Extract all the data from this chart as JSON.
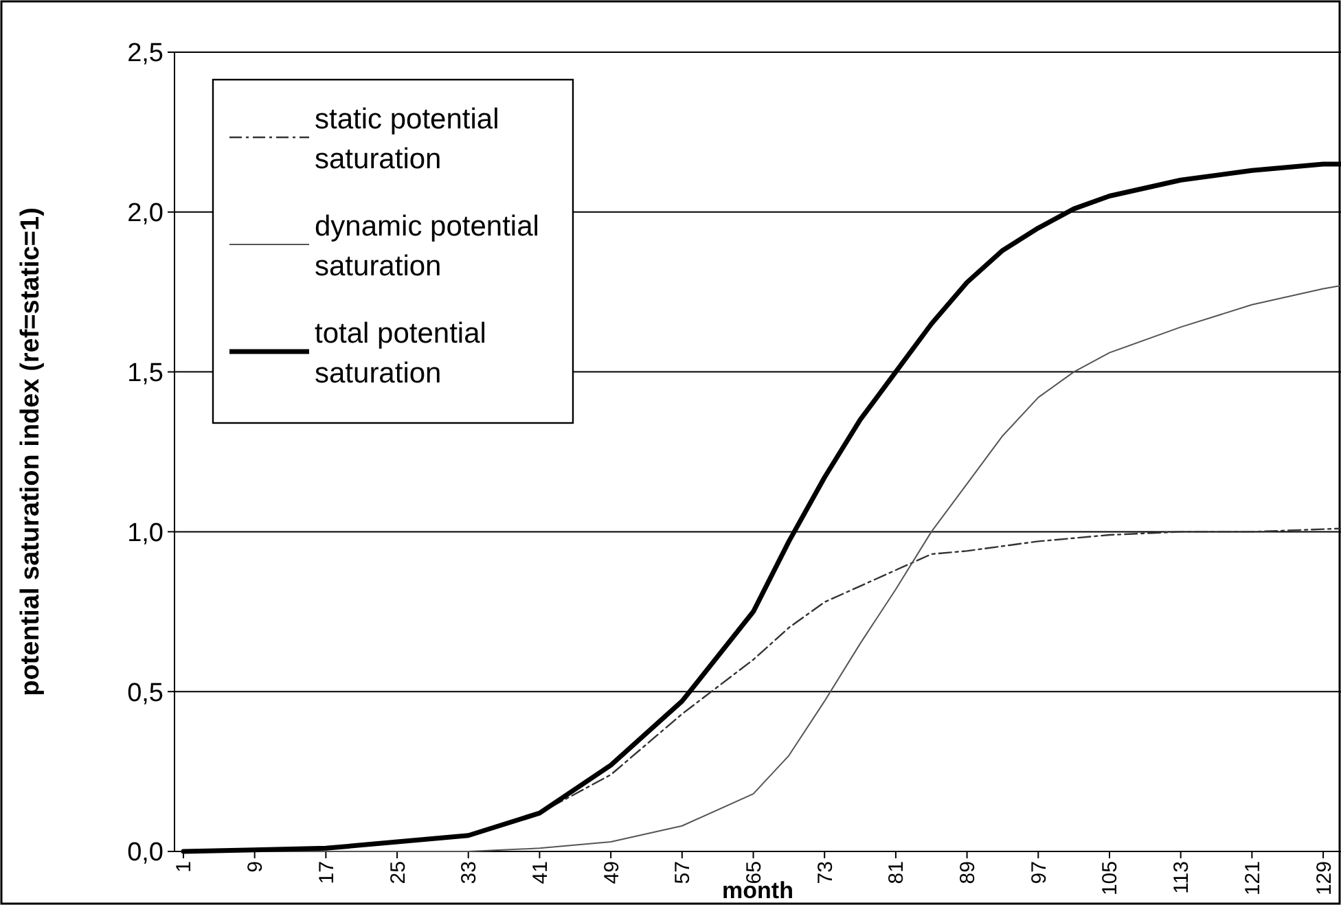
{
  "chart_data": {
    "type": "line",
    "xlabel": "month",
    "ylabel": "potential saturation index (ref=static=1)",
    "xlim": [
      0,
      131
    ],
    "xticks": [
      1,
      9,
      17,
      25,
      33,
      41,
      49,
      57,
      65,
      73,
      81,
      89,
      97,
      105,
      113,
      121,
      129
    ],
    "ylim": [
      0,
      2.5
    ],
    "yticks": [
      {
        "value": 0,
        "label": "0,0"
      },
      {
        "value": 0.5,
        "label": "0,5"
      },
      {
        "value": 1,
        "label": "1,0"
      },
      {
        "value": 1.5,
        "label": "1,5"
      },
      {
        "value": 2,
        "label": "2,0"
      },
      {
        "value": 2.5,
        "label": "2,5"
      }
    ],
    "grid": "y",
    "legend": "top left",
    "series": [
      {
        "name": "static potential saturation",
        "color": "#333333",
        "line_style": "dashed",
        "x": [
          1,
          9,
          17,
          25,
          33,
          41,
          49,
          57,
          65,
          69,
          73,
          77,
          81,
          85,
          89,
          97,
          105,
          113,
          121,
          131
        ],
        "values": [
          0,
          0.005,
          0.01,
          0.03,
          0.05,
          0.12,
          0.24,
          0.43,
          0.6,
          0.7,
          0.78,
          0.83,
          0.88,
          0.93,
          0.94,
          0.97,
          0.99,
          1.0,
          1.0,
          1.01
        ]
      },
      {
        "name": "dynamic potential saturation",
        "color": "#555555",
        "line_style": "solid",
        "x": [
          1,
          17,
          33,
          41,
          49,
          57,
          65,
          69,
          73,
          77,
          81,
          85,
          89,
          93,
          97,
          101,
          105,
          113,
          121,
          129,
          131
        ],
        "values": [
          0,
          0,
          0,
          0.01,
          0.03,
          0.08,
          0.18,
          0.3,
          0.47,
          0.65,
          0.82,
          1.0,
          1.15,
          1.3,
          1.42,
          1.5,
          1.56,
          1.64,
          1.71,
          1.76,
          1.77
        ]
      },
      {
        "name": "total potential saturation",
        "color": "#000000",
        "line_style": "solid",
        "x": [
          1,
          9,
          17,
          25,
          33,
          41,
          49,
          57,
          65,
          69,
          73,
          77,
          81,
          85,
          89,
          93,
          97,
          101,
          105,
          113,
          121,
          129,
          131
        ],
        "values": [
          0,
          0.005,
          0.01,
          0.03,
          0.05,
          0.12,
          0.27,
          0.47,
          0.75,
          0.97,
          1.17,
          1.35,
          1.5,
          1.65,
          1.78,
          1.88,
          1.95,
          2.01,
          2.05,
          2.1,
          2.13,
          2.15,
          2.15
        ]
      }
    ]
  }
}
